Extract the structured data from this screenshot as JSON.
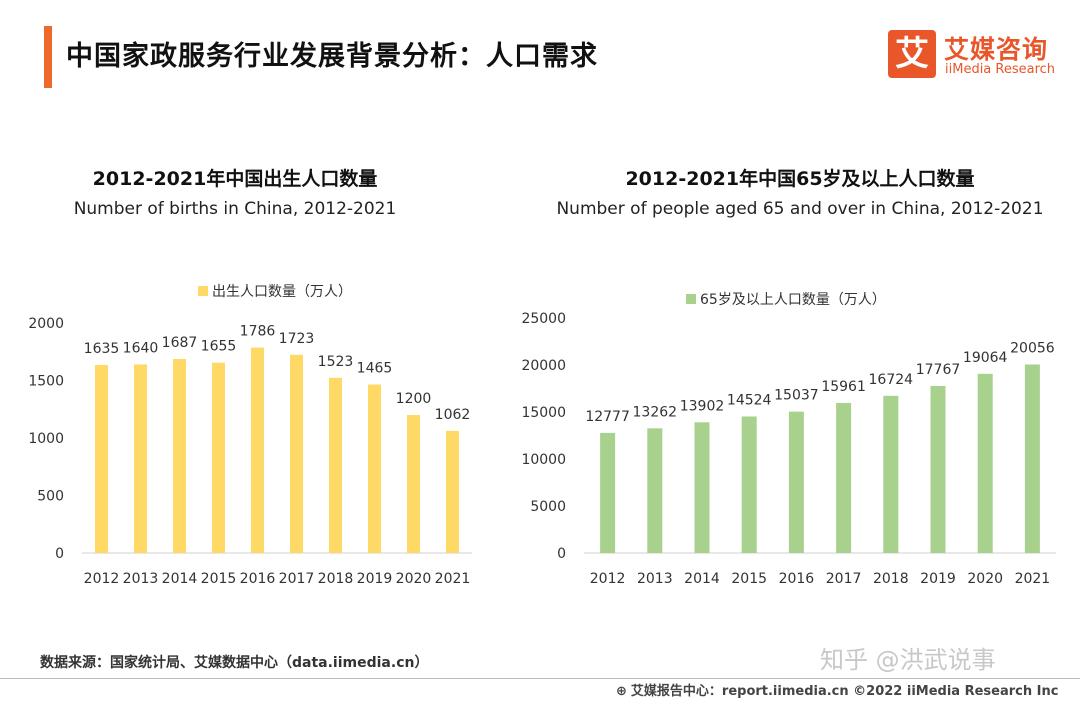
{
  "header": {
    "title": "中国家政服务行业发展背景分析：人口需求",
    "accent_color": "#ee6a2a"
  },
  "logo": {
    "mark": "艾",
    "name_cn": "艾媒咨询",
    "name_en": "iiMedia Research",
    "color": "#e8562a"
  },
  "chart_data": [
    {
      "type": "bar",
      "title": "2012-2021年中国出生人口数量",
      "subtitle": "Number of births in China, 2012-2021",
      "legend": "出生人口数量（万人）",
      "legend_position": "top-center",
      "categories": [
        "2012",
        "2013",
        "2014",
        "2015",
        "2016",
        "2017",
        "2018",
        "2019",
        "2020",
        "2021"
      ],
      "values": [
        1635,
        1640,
        1687,
        1655,
        1786,
        1723,
        1523,
        1465,
        1200,
        1062
      ],
      "yticks": [
        0,
        500,
        1000,
        1500,
        2000
      ],
      "ylim": [
        0,
        2000
      ],
      "color": "#ffd966",
      "grid": false
    },
    {
      "type": "bar",
      "title": "2012-2021年中国65岁及以上人口数量",
      "subtitle": "Number of people aged 65 and over in China, 2012-2021",
      "legend": "65岁及以上人口数量（万人）",
      "legend_position": "top-center",
      "categories": [
        "2012",
        "2013",
        "2014",
        "2015",
        "2016",
        "2017",
        "2018",
        "2019",
        "2020",
        "2021"
      ],
      "values": [
        12777,
        13262,
        13902,
        14524,
        15037,
        15961,
        16724,
        17767,
        19064,
        20056
      ],
      "yticks": [
        0,
        5000,
        10000,
        15000,
        20000,
        25000
      ],
      "ylim": [
        0,
        25000
      ],
      "color": "#a9d18e",
      "grid": false
    }
  ],
  "footer": {
    "source": "数据来源：国家统计局、艾媒数据中心（data.iimedia.cn）",
    "watermark": "知乎 @洪武说事",
    "report": "艾媒报告中心：report.iimedia.cn  ©2022  iiMedia Research  Inc"
  }
}
